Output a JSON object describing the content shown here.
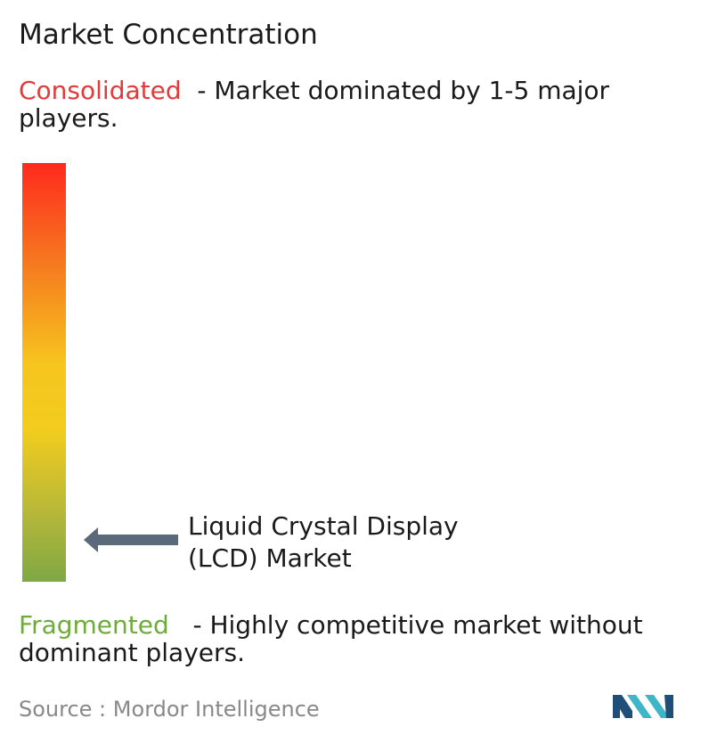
{
  "title": "Market Concentration",
  "consolidated": {
    "term": "Consolidated",
    "description": "  - Market dominated by 1-5 major players."
  },
  "fragmented": {
    "term": "Fragmented",
    "description": "   - Highly competitive market without dominant players."
  },
  "market_label": "Liquid Crystal Display (LCD) Market",
  "source": {
    "label": "Source :",
    "name": "Mordor Intelligence"
  },
  "colors": {
    "consolidated": "#e23b3b",
    "fragmented": "#6faa3d",
    "gradient_top": "#ff2a1e",
    "gradient_mid": "#f6c51e",
    "gradient_bottom": "#7fa844",
    "arrow": "#5b6a7a",
    "logo_dark": "#1f4e79",
    "logo_light": "#3fb5c8"
  },
  "chart_data": {
    "type": "gradient-scale",
    "scale_top": "Consolidated",
    "scale_bottom": "Fragmented",
    "marker": {
      "label": "Liquid Crystal Display (LCD) Market",
      "concentration": 0.12
    }
  }
}
